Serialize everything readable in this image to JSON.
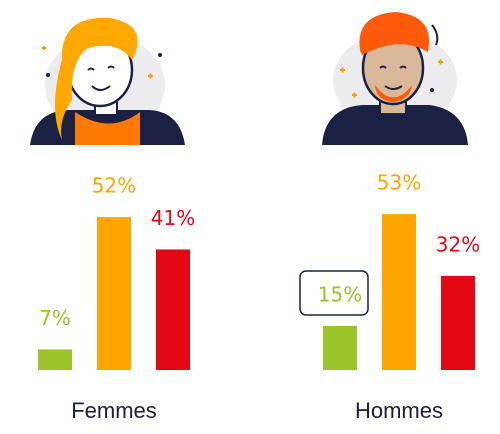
{
  "chart_data": {
    "type": "bar",
    "categories": [
      "Femmes",
      "Hommes"
    ],
    "series": [
      {
        "color": "#9ac42a",
        "values": [
          7,
          15
        ],
        "value_labels": [
          "7%",
          "15%"
        ]
      },
      {
        "color": "#ffa500",
        "values": [
          52,
          53
        ],
        "value_labels": [
          "52%",
          "53%"
        ]
      },
      {
        "color": "#e30613",
        "values": [
          41,
          32
        ],
        "value_labels": [
          "41%",
          "32%"
        ]
      }
    ]
  }
}
